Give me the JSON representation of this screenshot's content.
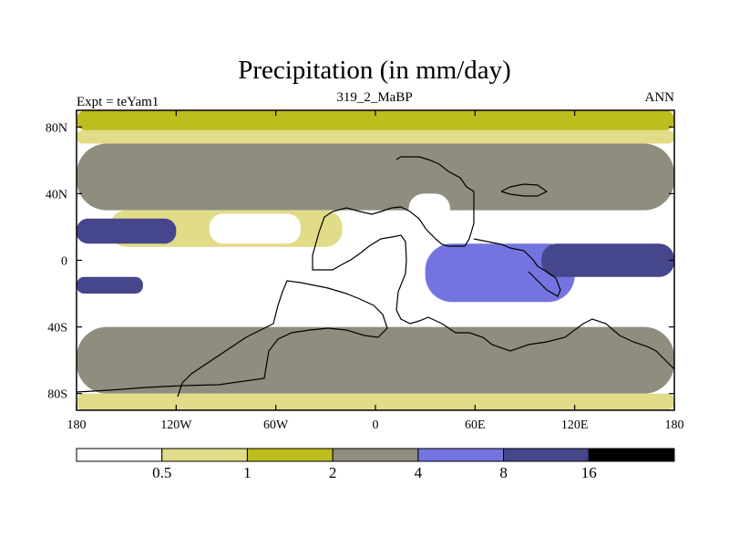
{
  "chart_data": {
    "type": "heatmap",
    "title": "Precipitation (in mm/day)",
    "subtitle_left": "Expt = teYam1",
    "subtitle_center": "319_2_MaBP",
    "subtitle_right": "ANN",
    "x_range": [
      -180,
      180
    ],
    "y_range": [
      -90,
      90
    ],
    "x_ticks": [
      {
        "value": -180,
        "label": "180"
      },
      {
        "value": -120,
        "label": "120W"
      },
      {
        "value": -60,
        "label": "60W"
      },
      {
        "value": 0,
        "label": "0"
      },
      {
        "value": 60,
        "label": "60E"
      },
      {
        "value": 120,
        "label": "120E"
      },
      {
        "value": 180,
        "label": "180"
      }
    ],
    "y_ticks": [
      {
        "value": 80,
        "label": "80N"
      },
      {
        "value": 40,
        "label": "40N"
      },
      {
        "value": 0,
        "label": "0"
      },
      {
        "value": -40,
        "label": "40S"
      },
      {
        "value": -80,
        "label": "80S"
      }
    ],
    "colorbar": {
      "levels": [
        {
          "value": 0.5,
          "label": "0.5"
        },
        {
          "value": 1,
          "label": "1"
        },
        {
          "value": 2,
          "label": "2"
        },
        {
          "value": 4,
          "label": "4"
        },
        {
          "value": 8,
          "label": "8"
        },
        {
          "value": 16,
          "label": "16"
        }
      ],
      "colors": [
        "#ffffff",
        "#e0dc88",
        "#bdbd1e",
        "#8f8e7e",
        "#7474e0",
        "#46468c",
        "#000000"
      ]
    },
    "regions": [
      {
        "name": "north-polar-band",
        "level": 2,
        "lat": [
          78,
          90
        ],
        "lon": [
          -180,
          180
        ]
      },
      {
        "name": "north-subpolar-light",
        "level": 1,
        "lat": [
          70,
          78
        ],
        "lon": [
          -180,
          180
        ]
      },
      {
        "name": "north-midlat-gray",
        "level": 3,
        "lat": [
          30,
          70
        ],
        "lon": [
          -180,
          180
        ]
      },
      {
        "name": "subtropical-dry-belt-n",
        "level": 1,
        "lat": [
          8,
          30
        ],
        "lon": [
          -160,
          -20
        ]
      },
      {
        "name": "pacific-itcz-north-blue",
        "level": 5,
        "lat": [
          10,
          25
        ],
        "lon": [
          -180,
          -120
        ]
      },
      {
        "name": "pacific-itcz-dark",
        "level": 5,
        "lat": [
          12,
          20
        ],
        "lon": [
          -180,
          -150
        ]
      },
      {
        "name": "equatorial-desert-west",
        "level": 0,
        "lat": [
          -3,
          3
        ],
        "lon": [
          -180,
          -140
        ]
      },
      {
        "name": "equatorial-desert-east",
        "level": 0,
        "lat": [
          -3,
          3
        ],
        "lon": [
          150,
          180
        ]
      },
      {
        "name": "north-subtropic-desert",
        "level": 0,
        "lat": [
          10,
          28
        ],
        "lon": [
          -100,
          -45
        ]
      },
      {
        "name": "southern-desert",
        "level": 0,
        "lat": [
          -40,
          -20
        ],
        "lon": [
          -100,
          -40
        ]
      },
      {
        "name": "laurasia-desert",
        "level": 0,
        "lat": [
          20,
          40
        ],
        "lon": [
          20,
          45
        ]
      },
      {
        "name": "east-wet-belt",
        "level": 4,
        "lat": [
          -25,
          10
        ],
        "lon": [
          30,
          120
        ]
      },
      {
        "name": "east-dark-band",
        "level": 5,
        "lat": [
          -10,
          10
        ],
        "lon": [
          100,
          180
        ]
      },
      {
        "name": "south-itcz-dark",
        "level": 5,
        "lat": [
          -20,
          -10
        ],
        "lon": [
          -180,
          -140
        ]
      },
      {
        "name": "south-midlat-gray",
        "level": 3,
        "lat": [
          -80,
          -40
        ],
        "lon": [
          -180,
          180
        ]
      },
      {
        "name": "south-subpolar-light",
        "level": 1,
        "lat": [
          -90,
          -80
        ],
        "lon": [
          -180,
          180
        ]
      }
    ]
  }
}
